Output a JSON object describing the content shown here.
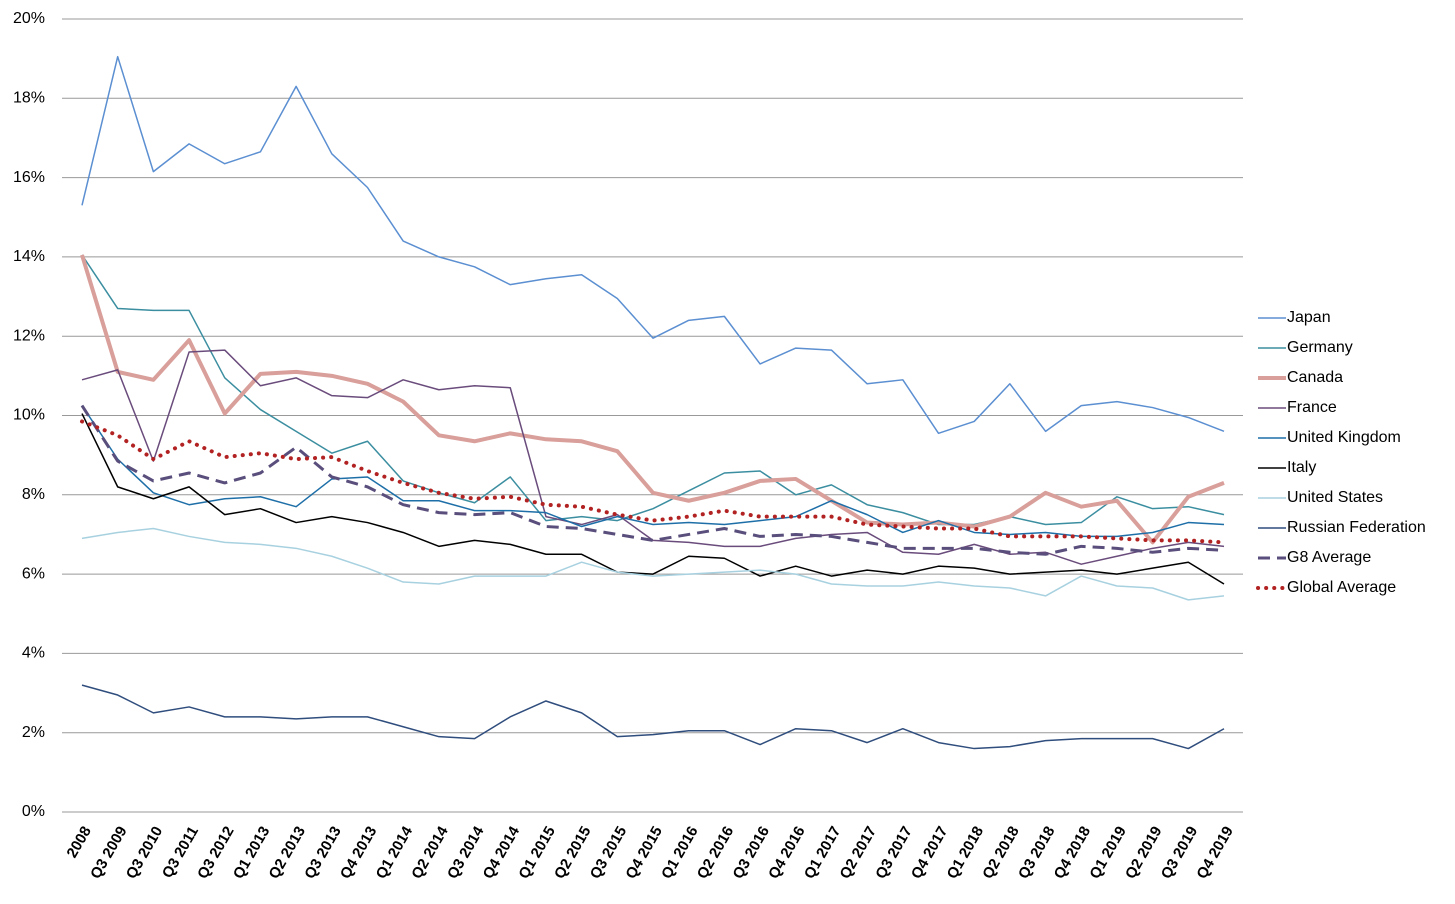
{
  "chart_data": {
    "type": "line",
    "categories": [
      "2008",
      "Q3 2009",
      "Q3 2010",
      "Q3 2011",
      "Q3 2012",
      "Q1 2013",
      "Q2 2013",
      "Q3 2013",
      "Q4 2013",
      "Q1 2014",
      "Q2 2014",
      "Q3 2014",
      "Q4 2014",
      "Q1 2015",
      "Q2 2015",
      "Q3 2015",
      "Q4 2015",
      "Q1 2016",
      "Q2 2016",
      "Q3 2016",
      "Q4 2016",
      "Q1 2017",
      "Q2 2017",
      "Q3 2017",
      "Q4 2017",
      "Q1 2018",
      "Q2 2018",
      "Q3 2018",
      "Q4 2018",
      "Q1 2019",
      "Q2 2019",
      "Q3 2019",
      "Q4 2019"
    ],
    "ylim": [
      0,
      20
    ],
    "yticks": [
      {
        "value": 0,
        "label": "0%"
      },
      {
        "value": 2,
        "label": "2%"
      },
      {
        "value": 4,
        "label": "4%"
      },
      {
        "value": 6,
        "label": "6%"
      },
      {
        "value": 8,
        "label": "8%"
      },
      {
        "value": 10,
        "label": "10%"
      },
      {
        "value": 12,
        "label": "12%"
      },
      {
        "value": 14,
        "label": "14%"
      },
      {
        "value": 16,
        "label": "16%"
      },
      {
        "value": 18,
        "label": "18%"
      },
      {
        "value": 20,
        "label": "20%"
      }
    ],
    "grid": true,
    "legend": "right",
    "series": [
      {
        "name": "Japan",
        "color": "#5b8fd1",
        "line_width": 1.5,
        "line_style": "solid",
        "values": [
          15.3,
          19.05,
          16.15,
          16.85,
          16.35,
          16.65,
          18.3,
          16.6,
          15.75,
          14.4,
          14.0,
          13.75,
          13.3,
          13.45,
          13.55,
          12.95,
          11.95,
          12.4,
          12.5,
          11.3,
          11.7,
          11.65,
          10.8,
          10.9,
          9.55,
          9.85,
          10.8,
          9.6,
          10.25,
          10.35,
          10.2,
          9.95,
          9.6
        ]
      },
      {
        "name": "Germany",
        "color": "#3b8ea0",
        "line_width": 1.5,
        "line_style": "solid",
        "values": [
          14.05,
          12.7,
          12.65,
          12.65,
          10.95,
          10.15,
          9.6,
          9.05,
          9.35,
          8.35,
          8.05,
          7.8,
          8.45,
          7.35,
          7.45,
          7.35,
          7.65,
          8.1,
          8.55,
          8.6,
          8.0,
          8.25,
          7.75,
          7.55,
          7.25,
          7.25,
          7.45,
          7.25,
          7.3,
          7.95,
          7.65,
          7.7,
          7.5
        ]
      },
      {
        "name": "Canada",
        "color": "#d99f9a",
        "line_width": 4,
        "line_style": "solid",
        "values": [
          14.05,
          11.1,
          10.9,
          11.9,
          10.05,
          11.05,
          11.1,
          11.0,
          10.8,
          10.35,
          9.5,
          9.35,
          9.55,
          9.4,
          9.35,
          9.1,
          8.05,
          7.85,
          8.05,
          8.35,
          8.4,
          7.85,
          7.3,
          7.25,
          7.3,
          7.2,
          7.45,
          8.05,
          7.7,
          7.85,
          6.8,
          7.95,
          8.3
        ]
      },
      {
        "name": "France",
        "color": "#6a4c7c",
        "line_width": 1.5,
        "line_style": "solid",
        "values": [
          10.9,
          11.15,
          8.85,
          11.6,
          11.65,
          10.75,
          10.95,
          10.5,
          10.45,
          10.9,
          10.65,
          10.75,
          10.7,
          7.45,
          7.25,
          7.5,
          6.85,
          6.8,
          6.7,
          6.7,
          6.9,
          7.0,
          7.05,
          6.55,
          6.5,
          6.75,
          6.5,
          6.55,
          6.25,
          6.45,
          6.65,
          6.8,
          6.7
        ]
      },
      {
        "name": "United Kingdom",
        "color": "#1e6fa8",
        "line_width": 1.5,
        "line_style": "solid",
        "values": [
          10.25,
          8.9,
          8.05,
          7.75,
          7.9,
          7.95,
          7.7,
          8.4,
          8.45,
          7.85,
          7.85,
          7.6,
          7.6,
          7.55,
          7.2,
          7.45,
          7.25,
          7.3,
          7.25,
          7.35,
          7.45,
          7.85,
          7.5,
          7.05,
          7.35,
          7.05,
          7.0,
          7.05,
          6.95,
          6.95,
          7.05,
          7.3,
          7.25
        ]
      },
      {
        "name": "Italy",
        "color": "#000000",
        "line_width": 1.5,
        "line_style": "solid",
        "values": [
          10.05,
          8.2,
          7.9,
          8.2,
          7.5,
          7.65,
          7.3,
          7.45,
          7.3,
          7.05,
          6.7,
          6.85,
          6.75,
          6.5,
          6.5,
          6.05,
          6.0,
          6.45,
          6.4,
          5.95,
          6.2,
          5.95,
          6.1,
          6.0,
          6.2,
          6.15,
          6.0,
          6.05,
          6.1,
          6.0,
          6.15,
          6.3,
          5.75
        ]
      },
      {
        "name": "United States",
        "color": "#a8d1e0",
        "line_width": 1.5,
        "line_style": "solid",
        "values": [
          6.9,
          7.05,
          7.15,
          6.95,
          6.8,
          6.75,
          6.65,
          6.45,
          6.15,
          5.8,
          5.75,
          5.95,
          5.95,
          5.95,
          6.3,
          6.05,
          5.95,
          6.0,
          6.05,
          6.1,
          6.0,
          5.75,
          5.7,
          5.7,
          5.8,
          5.7,
          5.65,
          5.45,
          5.95,
          5.7,
          5.65,
          5.35,
          5.45
        ]
      },
      {
        "name": "Russian Federation",
        "color": "#2f4d7d",
        "line_width": 1.5,
        "line_style": "solid",
        "values": [
          3.2,
          2.95,
          2.5,
          2.65,
          2.4,
          2.4,
          2.35,
          2.4,
          2.4,
          2.15,
          1.9,
          1.85,
          2.4,
          2.8,
          2.5,
          1.9,
          1.95,
          2.05,
          2.05,
          1.7,
          2.1,
          2.05,
          1.75,
          2.1,
          1.75,
          1.6,
          1.65,
          1.8,
          1.85,
          1.85,
          1.85,
          1.6,
          2.1
        ]
      },
      {
        "name": "G8 Average",
        "color": "#5a4f7c",
        "line_width": 3,
        "line_style": "dashed",
        "values": [
          10.25,
          8.85,
          8.35,
          8.55,
          8.3,
          8.55,
          9.2,
          8.45,
          8.2,
          7.75,
          7.55,
          7.5,
          7.55,
          7.2,
          7.15,
          7.0,
          6.85,
          7.0,
          7.15,
          6.95,
          7.0,
          6.95,
          6.8,
          6.65,
          6.65,
          6.65,
          6.55,
          6.5,
          6.7,
          6.65,
          6.55,
          6.65,
          6.6
        ]
      },
      {
        "name": "Global Average",
        "color": "#b22222",
        "line_width": 4,
        "line_style": "dotted",
        "values": [
          9.85,
          9.5,
          8.9,
          9.35,
          8.95,
          9.05,
          8.9,
          8.95,
          8.6,
          8.3,
          8.05,
          7.9,
          7.95,
          7.75,
          7.7,
          7.5,
          7.35,
          7.45,
          7.6,
          7.45,
          7.45,
          7.45,
          7.25,
          7.2,
          7.15,
          7.15,
          6.95,
          6.95,
          6.95,
          6.9,
          6.85,
          6.85,
          6.8
        ]
      }
    ]
  }
}
